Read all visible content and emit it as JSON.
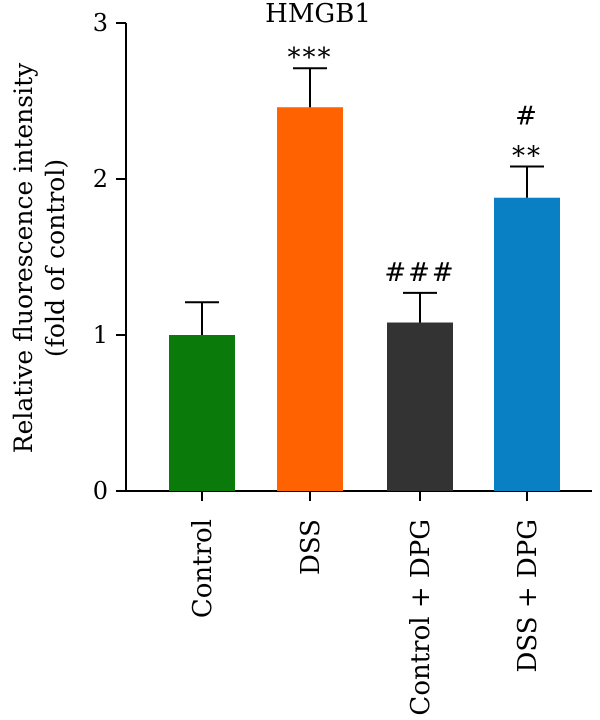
{
  "chart_data": {
    "type": "bar",
    "title": "HMGB1",
    "ylabel_line1": "Relative fluorescence intensity",
    "ylabel_line2": "(fold of control)",
    "xlabel": "",
    "ylim": [
      0,
      3
    ],
    "yticks": [
      0,
      1,
      2,
      3
    ],
    "grid": false,
    "legend": "none",
    "categories": [
      "Control",
      "DSS",
      "Control + DPG",
      "DSS + DPG"
    ],
    "values": [
      1.0,
      2.46,
      1.08,
      1.88
    ],
    "errors": [
      0.21,
      0.25,
      0.19,
      0.2
    ],
    "colors": [
      "#0a7a0a",
      "#ff6200",
      "#333333",
      "#0a80c4"
    ],
    "annotations": [
      [],
      [
        "***"
      ],
      [
        "###"
      ],
      [
        "**",
        "#"
      ]
    ]
  }
}
